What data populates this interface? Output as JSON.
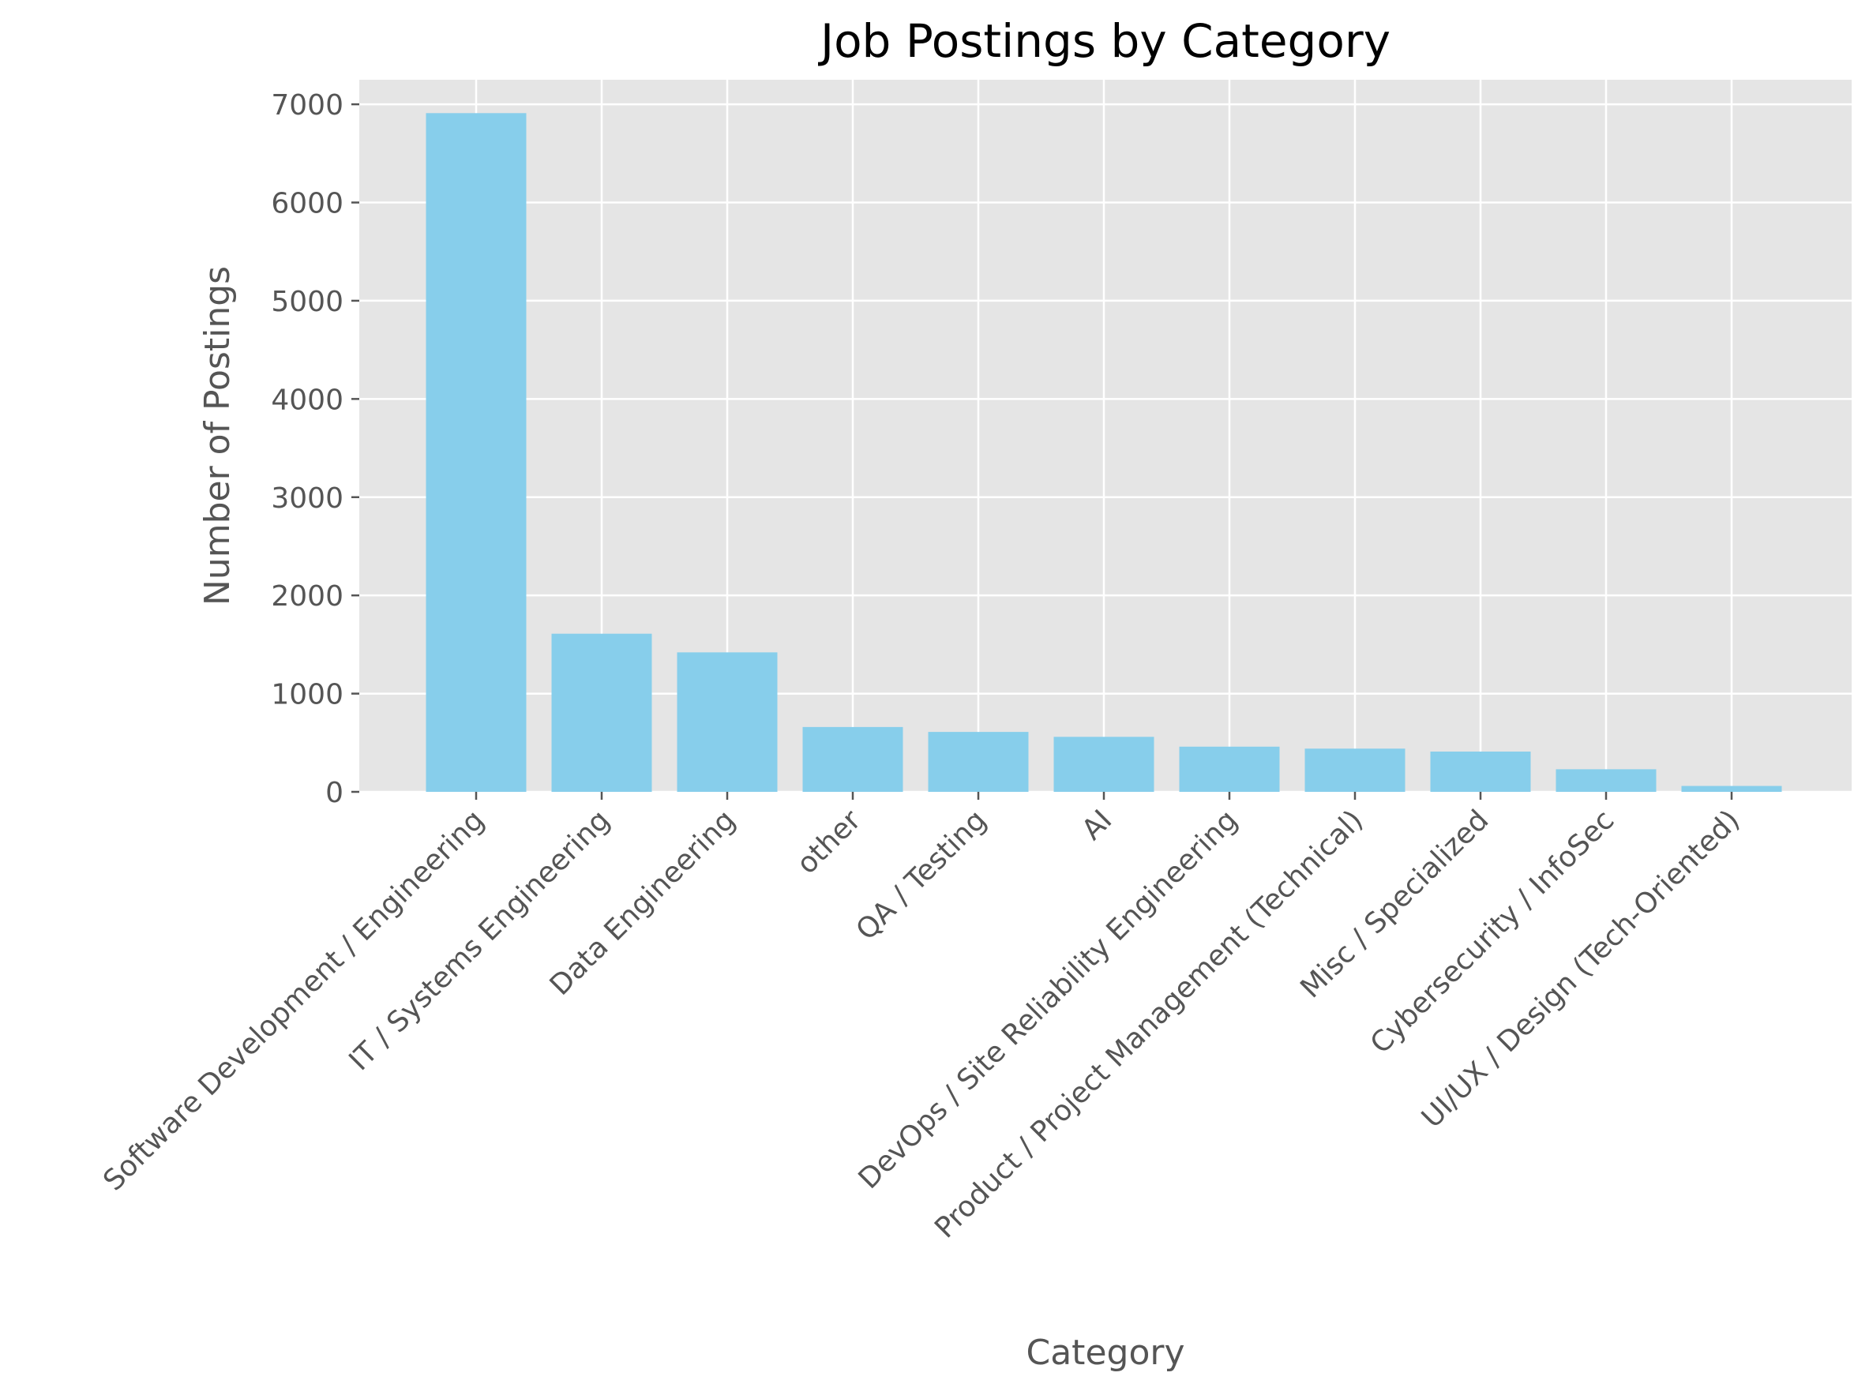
{
  "chart_data": {
    "type": "bar",
    "title": "Job Postings by Category",
    "xlabel": "Category",
    "ylabel": "Number of Postings",
    "categories": [
      "Software Development / Engineering",
      "IT / Systems Engineering",
      "Data Engineering",
      "other",
      "QA / Testing",
      "AI",
      "DevOps / Site Reliability Engineering",
      "Product / Project Management (Technical)",
      "Misc / Specialized",
      "Cybersecurity / InfoSec",
      "UI/UX / Design (Tech-Oriented)"
    ],
    "values": [
      6910,
      1610,
      1420,
      660,
      610,
      560,
      460,
      440,
      410,
      230,
      60
    ],
    "yticks": [
      0,
      1000,
      2000,
      3000,
      4000,
      5000,
      6000,
      7000
    ],
    "ylim": [
      0,
      7250
    ],
    "grid": true,
    "colors": {
      "bar": "#87ceeb",
      "plot_background": "#e5e5e5",
      "grid": "#ffffff",
      "text": "#555555"
    }
  }
}
